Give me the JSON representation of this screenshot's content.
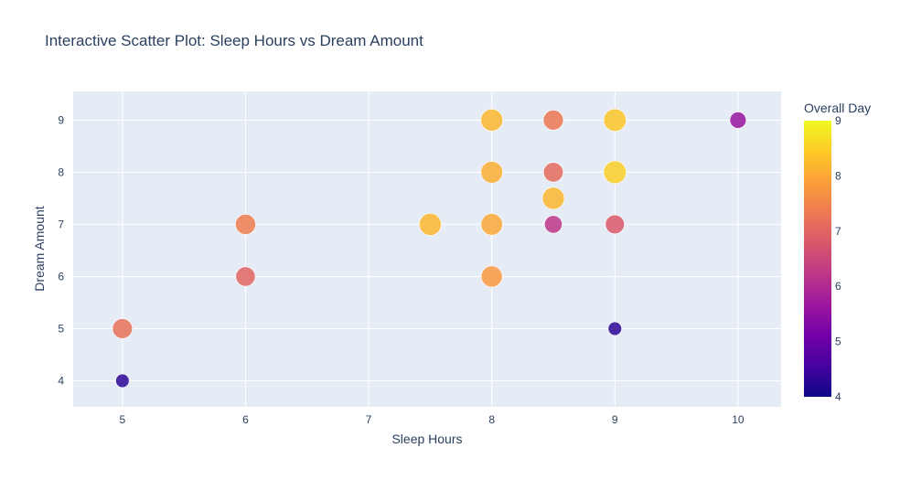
{
  "chart_data": {
    "type": "scatter",
    "title": "Interactive Scatter Plot: Sleep Hours vs Dream Amount",
    "xlabel": "Sleep Hours",
    "ylabel": "Dream Amount",
    "xlim": [
      4.6,
      10.35
    ],
    "ylim": [
      3.5,
      9.55
    ],
    "xticks": [
      5,
      6,
      7,
      8,
      9,
      10
    ],
    "yticks": [
      4,
      5,
      6,
      7,
      8,
      9
    ],
    "grid": true,
    "colorbar": {
      "title": "Overall Day",
      "range": [
        4,
        9
      ],
      "ticks": [
        4,
        5,
        6,
        7,
        8,
        9
      ],
      "colorscale": [
        "#0d0887",
        "#46039f",
        "#7201a8",
        "#9c179e",
        "#bd3786",
        "#d8576b",
        "#ed7953",
        "#fb9f3a",
        "#fdca26",
        "#f0f921"
      ]
    },
    "points": [
      {
        "x": 5,
        "y": 4,
        "color_value": 4.3
      },
      {
        "x": 5,
        "y": 5,
        "color_value": 7.2
      },
      {
        "x": 6,
        "y": 6,
        "color_value": 7.0
      },
      {
        "x": 6,
        "y": 7,
        "color_value": 7.4
      },
      {
        "x": 7.5,
        "y": 7,
        "color_value": 8.2
      },
      {
        "x": 8,
        "y": 6,
        "color_value": 7.8
      },
      {
        "x": 8,
        "y": 7,
        "color_value": 8.0
      },
      {
        "x": 8,
        "y": 8,
        "color_value": 8.1
      },
      {
        "x": 8,
        "y": 9,
        "color_value": 8.2
      },
      {
        "x": 8.5,
        "y": 7,
        "color_value": 6.2
      },
      {
        "x": 8.5,
        "y": 7.5,
        "color_value": 8.2
      },
      {
        "x": 8.5,
        "y": 8,
        "color_value": 7.1
      },
      {
        "x": 8.5,
        "y": 9,
        "color_value": 7.3
      },
      {
        "x": 9,
        "y": 5,
        "color_value": 4.3
      },
      {
        "x": 9,
        "y": 7,
        "color_value": 6.8
      },
      {
        "x": 9,
        "y": 8,
        "color_value": 8.5
      },
      {
        "x": 9,
        "y": 9,
        "color_value": 8.4
      },
      {
        "x": 10,
        "y": 9,
        "color_value": 5.6
      }
    ]
  }
}
